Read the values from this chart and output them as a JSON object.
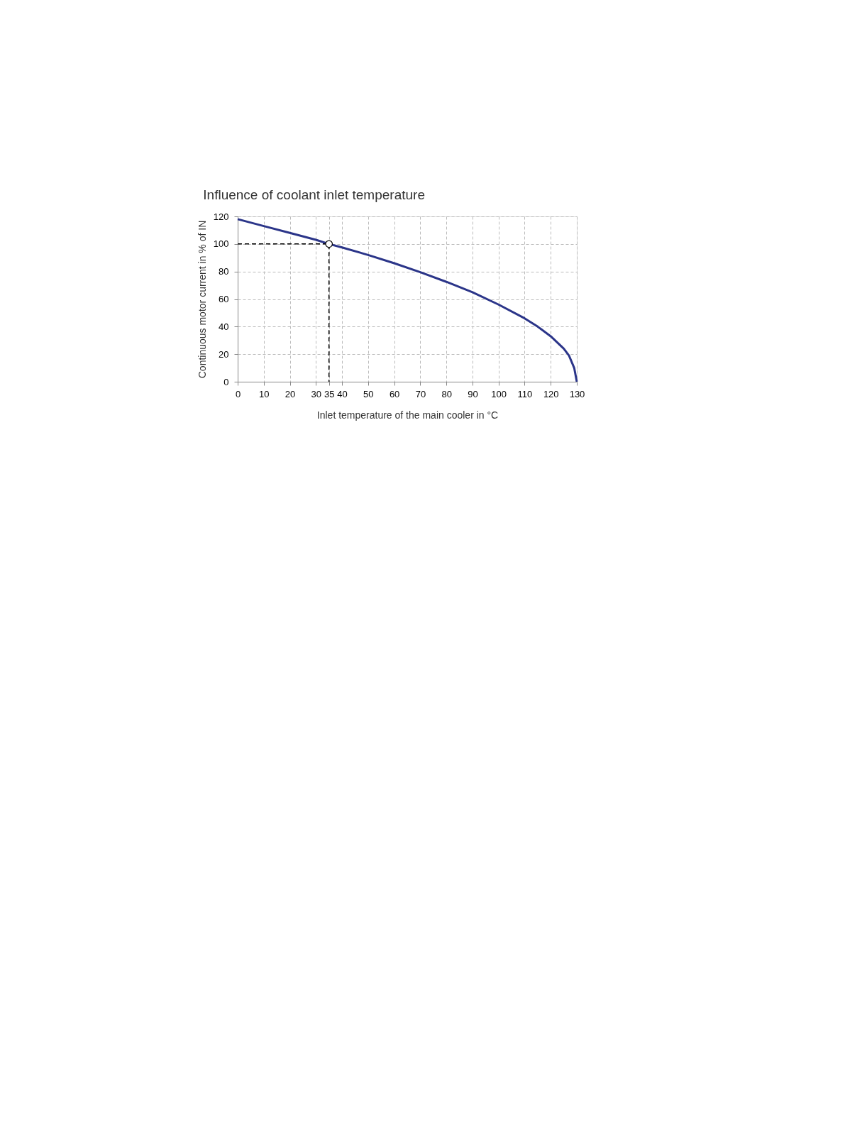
{
  "chart_data": {
    "type": "line",
    "title": "Influence of coolant inlet temperature",
    "xlabel": "Inlet temperature of the main cooler in °C",
    "ylabel": "Continuous motor current in % of IN",
    "xlim": [
      0,
      130
    ],
    "ylim": [
      0,
      120
    ],
    "xticks": [
      0,
      10,
      20,
      30,
      35,
      40,
      50,
      60,
      70,
      80,
      90,
      100,
      110,
      120,
      130
    ],
    "yticks": [
      0,
      20,
      40,
      60,
      80,
      100,
      120
    ],
    "grid": true,
    "series": [
      {
        "color": "#2b3589",
        "line_style": "solid",
        "marker": "none",
        "x": [
          0,
          10,
          20,
          30,
          35,
          40,
          50,
          60,
          70,
          80,
          90,
          100,
          110,
          115,
          120,
          125,
          127,
          129,
          130
        ],
        "values": [
          118,
          113,
          108,
          103,
          100,
          97.5,
          92,
          86,
          79.5,
          72.5,
          65,
          56,
          46,
          40,
          33,
          24,
          19,
          10,
          0
        ]
      },
      {
        "type": "line",
        "color": "#000000",
        "line_style": "dashed",
        "marker": "none",
        "x": [
          0,
          35,
          35
        ],
        "values": [
          100,
          100,
          0
        ]
      },
      {
        "type": "scatter",
        "color": "#ffffff",
        "marker": "circle",
        "x": [
          35
        ],
        "values": [
          100
        ]
      }
    ]
  }
}
